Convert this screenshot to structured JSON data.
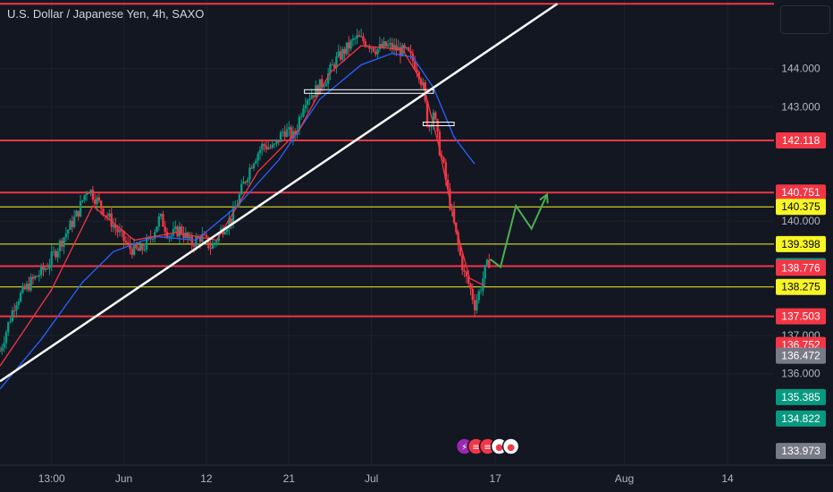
{
  "title": "U.S. Dollar / Japanese Yen, 4h, SAXO",
  "colors": {
    "background": "#131722",
    "grid": "#1e222d",
    "text": "#b2b5be",
    "red_level": "#f23645",
    "yellow_level": "#f7f525",
    "white_trend": "#ffffff",
    "ma_red": "#f23645",
    "ma_blue": "#2962ff",
    "green_projection": "#4caf50",
    "candle_up": "#089981",
    "candle_down": "#f23645"
  },
  "chart_data": {
    "type": "candlestick",
    "ylim": [
      133.6,
      145.8
    ],
    "y_ticks": [
      "144.000",
      "143.000",
      "140.000",
      "137.000",
      "136.000"
    ],
    "x_ticks": [
      {
        "label": "13:00",
        "idx": 10
      },
      {
        "label": "Jun",
        "idx": 24
      },
      {
        "label": "12",
        "idx": 40
      },
      {
        "label": "21",
        "idx": 56
      },
      {
        "label": "Jul",
        "idx": 72
      },
      {
        "label": "17",
        "idx": 96
      },
      {
        "label": "Aug",
        "idx": 121
      },
      {
        "label": "14",
        "idx": 141
      }
    ],
    "price_path": [
      [
        0,
        136.6
      ],
      [
        3,
        137.9
      ],
      [
        6,
        138.4
      ],
      [
        9,
        138.8
      ],
      [
        12,
        139.5
      ],
      [
        15,
        140.2
      ],
      [
        17,
        140.9
      ],
      [
        19,
        140.5
      ],
      [
        21,
        140.1
      ],
      [
        23,
        139.7
      ],
      [
        25,
        139.3
      ],
      [
        27,
        139.2
      ],
      [
        29,
        139.5
      ],
      [
        31,
        140.1
      ],
      [
        33,
        139.6
      ],
      [
        35,
        139.8
      ],
      [
        37,
        139.4
      ],
      [
        39,
        139.6
      ],
      [
        41,
        139.3
      ],
      [
        43,
        139.8
      ],
      [
        45,
        140.1
      ],
      [
        47,
        140.9
      ],
      [
        49,
        141.6
      ],
      [
        51,
        142.0
      ],
      [
        53,
        141.9
      ],
      [
        55,
        142.4
      ],
      [
        57,
        142.2
      ],
      [
        59,
        143.2
      ],
      [
        61,
        143.4
      ],
      [
        63,
        143.7
      ],
      [
        65,
        144.2
      ],
      [
        67,
        144.5
      ],
      [
        69,
        144.8
      ],
      [
        71,
        144.7
      ],
      [
        73,
        144.5
      ],
      [
        75,
        144.6
      ],
      [
        77,
        144.5
      ],
      [
        79,
        144.4
      ],
      [
        81,
        144.0
      ],
      [
        82,
        143.5
      ],
      [
        83,
        142.4
      ],
      [
        84,
        142.9
      ],
      [
        85,
        142.0
      ],
      [
        86,
        141.4
      ],
      [
        87,
        140.6
      ],
      [
        88,
        139.9
      ],
      [
        89,
        139.2
      ],
      [
        90,
        138.6
      ],
      [
        91,
        138.3
      ],
      [
        92,
        137.8
      ],
      [
        93,
        138.2
      ],
      [
        94,
        138.7
      ],
      [
        95,
        139.0
      ]
    ],
    "ma_fast": [
      [
        0,
        136.2
      ],
      [
        10,
        138.2
      ],
      [
        18,
        140.4
      ],
      [
        26,
        139.5
      ],
      [
        34,
        139.7
      ],
      [
        42,
        139.5
      ],
      [
        50,
        141.3
      ],
      [
        58,
        142.4
      ],
      [
        64,
        143.9
      ],
      [
        70,
        144.6
      ],
      [
        78,
        144.5
      ],
      [
        82,
        143.6
      ],
      [
        85,
        142.0
      ],
      [
        88,
        140.0
      ],
      [
        91,
        138.5
      ],
      [
        94,
        138.3
      ]
    ],
    "ma_slow": [
      [
        0,
        135.6
      ],
      [
        8,
        136.9
      ],
      [
        16,
        138.4
      ],
      [
        22,
        139.2
      ],
      [
        30,
        139.6
      ],
      [
        38,
        139.5
      ],
      [
        46,
        140.4
      ],
      [
        54,
        141.6
      ],
      [
        62,
        143.2
      ],
      [
        70,
        144.1
      ],
      [
        76,
        144.4
      ],
      [
        80,
        144.3
      ],
      [
        84,
        143.5
      ],
      [
        88,
        142.2
      ],
      [
        92,
        141.5
      ]
    ],
    "trendline": [
      [
        0,
        135.8
      ],
      [
        108,
        145.7
      ]
    ],
    "supply_zone_1": {
      "from": 59,
      "to": 84,
      "y": 143.4
    },
    "supply_zone_2": {
      "from": 82,
      "to": 88,
      "y": 142.55
    },
    "projection": [
      [
        95,
        139.0
      ],
      [
        97,
        138.8
      ],
      [
        100,
        140.4
      ],
      [
        103,
        139.8
      ],
      [
        106,
        140.7
      ]
    ],
    "levels": [
      {
        "value": "142.118",
        "y": 142.118,
        "type": "red",
        "label_bg": "#f23645",
        "label_fg": "#ffffff"
      },
      {
        "value": "140.751",
        "y": 140.751,
        "type": "red",
        "label_bg": "#f23645",
        "label_fg": "#ffffff"
      },
      {
        "value": "140.375",
        "y": 140.375,
        "type": "yellow",
        "label_bg": "#f7f525",
        "label_fg": "#000000"
      },
      {
        "value": "139.398",
        "y": 139.398,
        "type": "yellow",
        "label_bg": "#f7f525",
        "label_fg": "#000000"
      },
      {
        "value": "138.821",
        "y": 138.821,
        "type": "red",
        "label_bg": "#089981",
        "label_fg": "#ffffff"
      },
      {
        "value": "138.776",
        "y": 138.776,
        "type": "none",
        "label_bg": "#f23645",
        "label_fg": "#ffffff"
      },
      {
        "value": "138.275",
        "y": 138.275,
        "type": "yellow",
        "label_bg": "#f7f525",
        "label_fg": "#000000"
      },
      {
        "value": "137.503",
        "y": 137.503,
        "type": "red",
        "label_bg": "#f23645",
        "label_fg": "#ffffff"
      },
      {
        "value": "136.752",
        "y": 136.752,
        "type": "none",
        "label_bg": "#f23645",
        "label_fg": "#ffffff"
      },
      {
        "value": "136.472",
        "y": 136.472,
        "type": "none",
        "label_bg": "#787b86",
        "label_fg": "#ffffff"
      },
      {
        "value": "135.385",
        "y": 135.385,
        "type": "none",
        "label_bg": "#089981",
        "label_fg": "#ffffff"
      },
      {
        "value": "134.822",
        "y": 134.822,
        "type": "none",
        "label_bg": "#089981",
        "label_fg": "#ffffff"
      },
      {
        "value": "133.973",
        "y": 133.973,
        "type": "none",
        "label_bg": "#787b86",
        "label_fg": "#ffffff"
      }
    ],
    "top_level": {
      "y": 145.7,
      "type": "red"
    },
    "event_icons": [
      "lightning-icon",
      "us-flag-icon",
      "us-flag-icon",
      "jp-flag-icon",
      "jp-flag-icon"
    ]
  }
}
